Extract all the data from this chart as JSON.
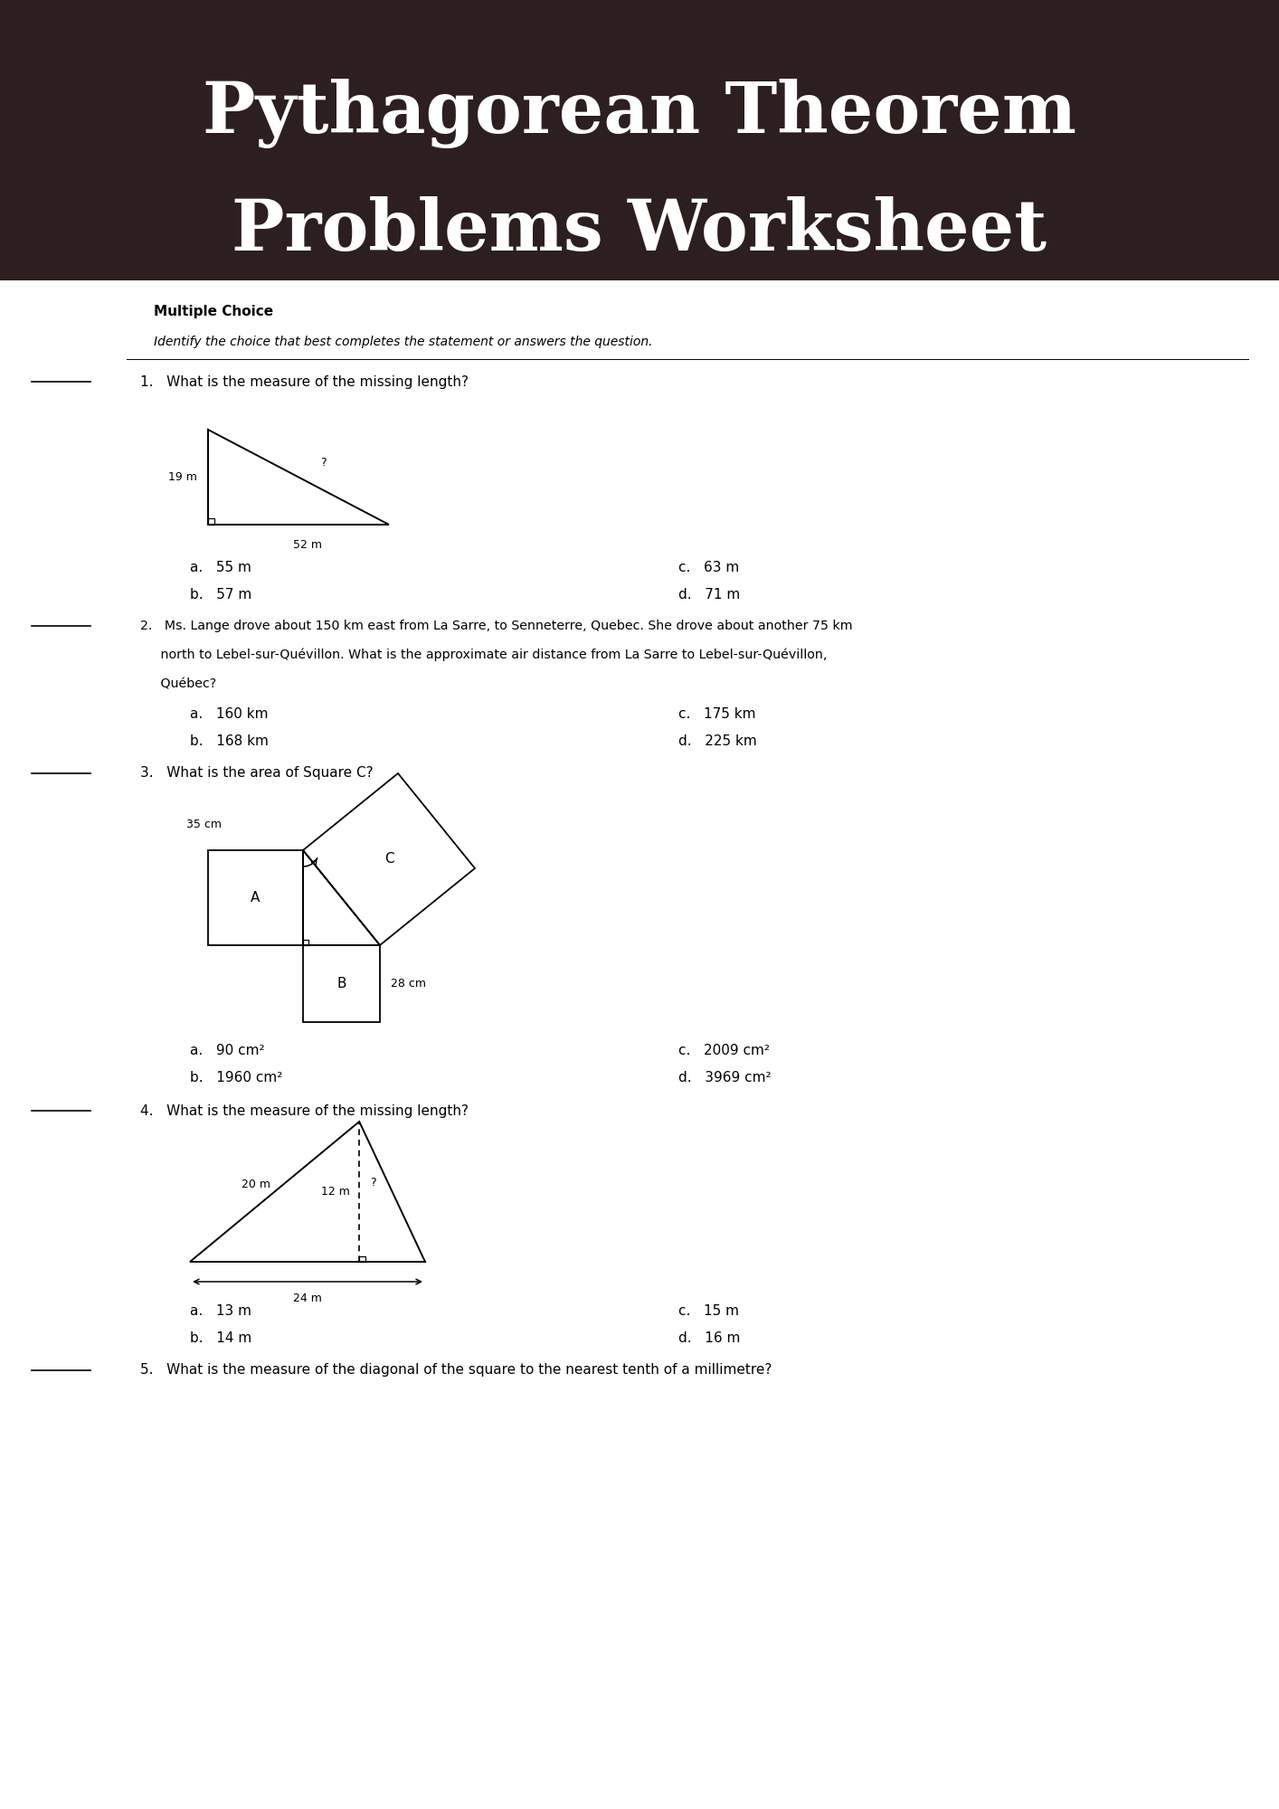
{
  "title_line1": "Pythagorean Theorem",
  "title_line2": "Problems Worksheet",
  "title_bg": "#2d1f1f",
  "title_text_color": "#ffffff",
  "bg_color": "#ffffff",
  "section_header": "Multiple Choice",
  "section_subheader": "Identify the choice that best completes the statement or answers the question.",
  "q1_text": "1.   What is the measure of the missing length?",
  "q1_choices_left": [
    "a.   55 m",
    "b.   57 m"
  ],
  "q1_choices_right": [
    "c.   63 m",
    "d.   71 m"
  ],
  "q2_line1": "2.   Ms. Lange drove about 150 km east from La Sarre, to Senneterre, Quebec. She drove about another 75 km",
  "q2_line2": "     north to Lebel-sur-Quévillon. What is the approximate air distance from La Sarre to Lebel-sur-Quévillon,",
  "q2_line3": "     Québec?",
  "q2_choices_left": [
    "a.   160 km",
    "b.   168 km"
  ],
  "q2_choices_right": [
    "c.   175 km",
    "d.   225 km"
  ],
  "q3_text": "3.   What is the area of Square C?",
  "q3_choices_left": [
    "a.   90 cm²",
    "b.   1960 cm²"
  ],
  "q3_choices_right": [
    "c.   2009 cm²",
    "d.   3969 cm²"
  ],
  "q4_text": "4.   What is the measure of the missing length?",
  "q4_choices_left": [
    "a.   13 m",
    "b.   14 m"
  ],
  "q4_choices_right": [
    "c.   15 m",
    "d.   16 m"
  ],
  "q5_text": "5.   What is the measure of the diagonal of the square to the nearest tenth of a millimetre?"
}
